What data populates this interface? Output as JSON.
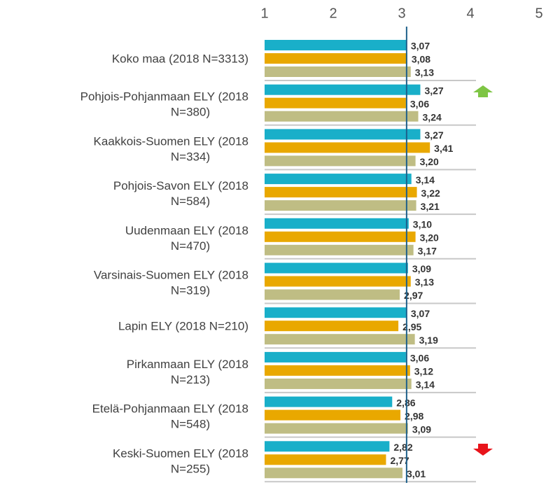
{
  "chart_data": {
    "type": "hbar",
    "categories": [
      "Koko maa (2018 N=3313)",
      "Pohjois-Pohjanmaan ELY (2018 N=380)",
      "Kaakkois-Suomen ELY (2018 N=334)",
      "Pohjois-Savon ELY (2018 N=584)",
      "Uudenmaan ELY (2018 N=470)",
      "Varsinais-Suomen ELY (2018 N=319)",
      "Lapin ELY (2018 N=210)",
      "Pirkanmaan ELY (2018 N=213)",
      "Etelä-Pohjanmaan ELY (2018 N=548)",
      "Keski-Suomen ELY (2018 N=255)"
    ],
    "series": [
      {
        "color": "#19afc9",
        "values": [
          3.07,
          3.27,
          3.27,
          3.14,
          3.1,
          3.09,
          3.07,
          3.06,
          2.86,
          2.82
        ],
        "value_labels": [
          "3,07",
          "3,27",
          "3,27",
          "3,14",
          "3,10",
          "3,09",
          "3,07",
          "3,06",
          "2,86",
          "2,82"
        ]
      },
      {
        "color": "#e9a800",
        "values": [
          3.08,
          3.06,
          3.41,
          3.22,
          3.2,
          3.13,
          2.95,
          3.12,
          2.98,
          2.77
        ],
        "value_labels": [
          "3,08",
          "3,06",
          "3,41",
          "3,22",
          "3,20",
          "3,13",
          "2,95",
          "3,12",
          "2,98",
          "2,77"
        ]
      },
      {
        "color": "#bfbd84",
        "values": [
          3.13,
          3.24,
          3.2,
          3.21,
          3.17,
          2.97,
          3.19,
          3.14,
          3.09,
          3.01
        ],
        "value_labels": [
          "3,13",
          "3,24",
          "3,20",
          "3,21",
          "3,17",
          "2,97",
          "3,19",
          "3,14",
          "3,09",
          "3,01"
        ]
      }
    ],
    "xlim": [
      1,
      5
    ],
    "xticks": [
      1,
      2,
      3,
      4,
      5
    ],
    "reference_line": 3.07,
    "reference_color": "#1d5f8a"
  }
}
